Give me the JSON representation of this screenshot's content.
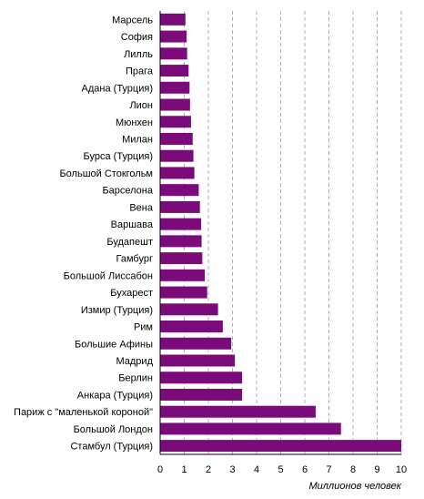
{
  "chart_data": {
    "type": "bar",
    "orientation": "horizontal",
    "title": "",
    "xlabel": "Миллионов человек",
    "ylabel": "",
    "xlim": [
      0,
      10
    ],
    "x_ticks": [
      "0",
      "1",
      "2",
      "3",
      "4",
      "5",
      "6",
      "7",
      "8",
      "9",
      "10"
    ],
    "grid": "vertical dashed",
    "bar_color": "#7b0a7b",
    "categories": [
      "Марсель",
      "София",
      "Лилль",
      "Прага",
      "Адана (Турция)",
      "Лион",
      "Мюнхен",
      "Милан",
      "Бурса (Турция)",
      "Большой Стокгольм",
      "Барселона",
      "Вена",
      "Варшава",
      "Будапешт",
      "Гамбург",
      "Большой Лиссабон",
      "Бухарест",
      "Измир (Турция)",
      "Рим",
      "Большие Афины",
      "Мадрид",
      "Берлин",
      "Анкара (Турция)",
      "Париж с \"маленькой короной\"",
      "Большой Лондон",
      "Стамбул (Турция)"
    ],
    "values": [
      1.05,
      1.1,
      1.12,
      1.18,
      1.22,
      1.24,
      1.28,
      1.35,
      1.38,
      1.42,
      1.6,
      1.65,
      1.7,
      1.72,
      1.75,
      1.85,
      1.95,
      2.4,
      2.6,
      2.95,
      3.1,
      3.4,
      3.4,
      6.45,
      7.5,
      10.0
    ]
  }
}
